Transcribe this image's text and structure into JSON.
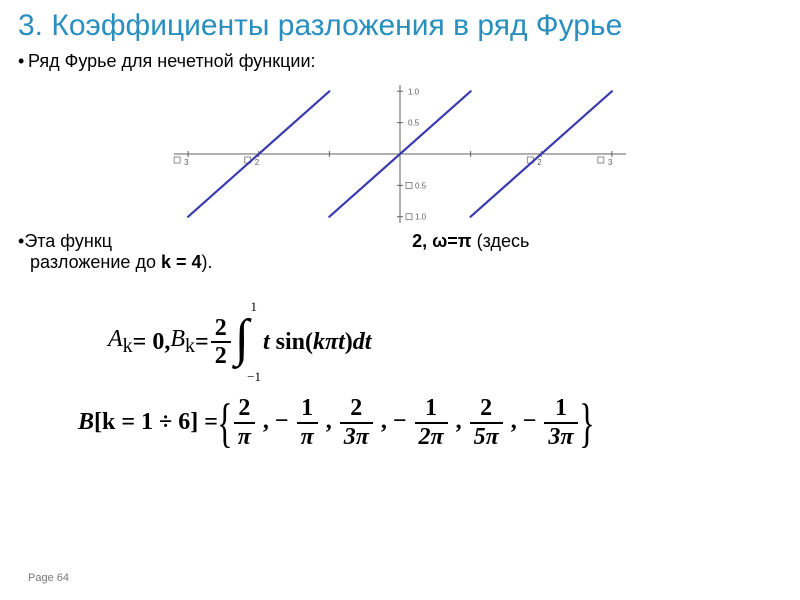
{
  "title": {
    "text": "3. Коэффициенты разложения в ряд Фурье",
    "color": "#2a8fbd",
    "fontsize": 30
  },
  "bullet1": "Ряд Фурье для нечетной функции:",
  "line2": {
    "prefix": "Эта функц",
    "mid_bold": "2,  ω=π",
    "suffix1": " (здесь",
    "line2b_prefix": "разложение до ",
    "k_bold": "k = 4",
    "line2b_suffix": ")."
  },
  "chart": {
    "type": "line",
    "line_color": "#3b3bb0",
    "axis_color": "#606060",
    "tick_color": "#606060",
    "label_color": "#606060",
    "bg": "#ffffff",
    "xlim": [
      -3.2,
      3.2
    ],
    "ylim": [
      -1.1,
      1.1
    ],
    "xticks": [
      -3,
      -2,
      -1,
      1,
      2,
      3
    ],
    "xtick_labels": [
      "3",
      "2",
      "",
      "",
      "2",
      "3"
    ],
    "yticks": [
      -1.0,
      -0.5,
      0.5,
      1.0
    ],
    "ytick_labels": [
      "1.0",
      "0.5",
      "0.5",
      "1.0"
    ],
    "label_fontsize": 8,
    "line_width": 2.2,
    "segments": [
      [
        [
          -3.0,
          -1.0
        ],
        [
          -1.0,
          1.0
        ]
      ],
      [
        [
          -1.0,
          -1.0
        ],
        [
          1.0,
          1.0
        ]
      ],
      [
        [
          1.0,
          -1.0
        ],
        [
          3.0,
          1.0
        ]
      ]
    ]
  },
  "formula1": {
    "Ak": "A",
    "ksub": "k",
    "eq0": " = 0,  ",
    "Bk": "B",
    "eq": " = ",
    "frac_num": "2",
    "frac_den": "2",
    "int_upper": "1",
    "int_lower": "−1",
    "integrand_t": "t",
    "integrand_sin": " sin(",
    "integrand_kpt": "kπt",
    "integrand_close": ")",
    "dt": "dt"
  },
  "formula2": {
    "lhs_B": "B",
    "lhs_bracket": "[k = 1 ÷ 6] = ",
    "coeffs": [
      {
        "num": "2",
        "den": "π",
        "sign": ""
      },
      {
        "num": "1",
        "den": "π",
        "sign": "−"
      },
      {
        "num": "2",
        "den": "3π",
        "sign": ""
      },
      {
        "num": "1",
        "den": "2π",
        "sign": "−"
      },
      {
        "num": "2",
        "den": "5π",
        "sign": ""
      },
      {
        "num": "1",
        "den": "3π",
        "sign": "−"
      }
    ]
  },
  "page": "Page 64"
}
